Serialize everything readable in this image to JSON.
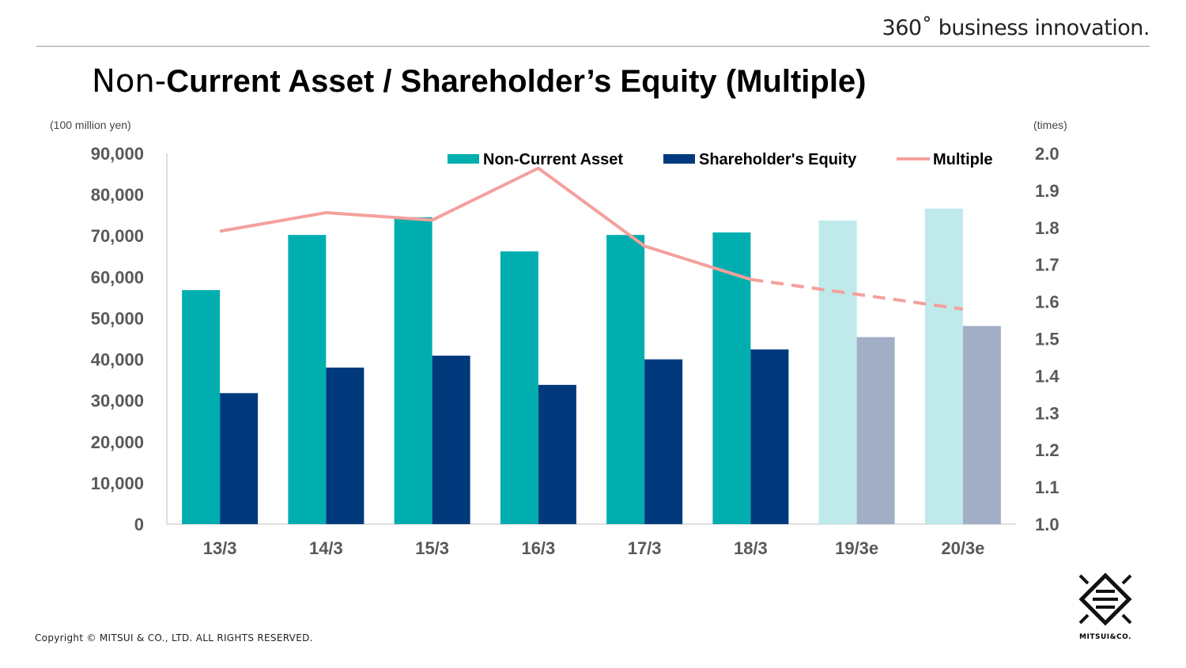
{
  "header": {
    "tagline": "360˚ business innovation.",
    "title_light": "Non-",
    "title_bold": "Current Asset / Shareholder’s Equity (Multiple)"
  },
  "footer": {
    "copyright": "Copyright © MITSUI & CO., LTD. ALL RIGHTS RESERVED.",
    "logo_text": "MITSUI&CO."
  },
  "colors": {
    "non_current_asset": "#00AEAF",
    "non_current_asset_estimate": "#BFE9EA",
    "shareholders_equity": "#003A7D",
    "shareholders_equity_estimate": "#A2AEC6",
    "multiple": "#F4A09C",
    "axis_text": "#595959"
  },
  "chart_data": {
    "type": "bar",
    "title": "",
    "categories": [
      "13/3",
      "14/3",
      "15/3",
      "16/3",
      "17/3",
      "18/3",
      "19/3e",
      "20/3e"
    ],
    "estimate_categories": [
      "19/3e",
      "20/3e"
    ],
    "series": [
      {
        "name": "Non-Current Asset",
        "type": "bar",
        "axis": "left",
        "values": [
          56800,
          70200,
          74500,
          66200,
          70200,
          70800,
          73700,
          76600
        ]
      },
      {
        "name": "Shareholder's Equity",
        "type": "bar",
        "axis": "left",
        "values": [
          31800,
          38000,
          40900,
          33800,
          40000,
          42400,
          45400,
          48100
        ]
      },
      {
        "name": "Multiple",
        "type": "line",
        "axis": "right",
        "values": [
          1.79,
          1.84,
          1.82,
          1.96,
          1.75,
          1.66,
          1.62,
          1.58
        ],
        "dashed_from_index": 5
      }
    ],
    "ylabel_left": "(100 million yen)",
    "ylabel_right": "(times)",
    "ylim_left": [
      0,
      90000
    ],
    "ylim_right": [
      1.0,
      2.0
    ],
    "yticks_left": [
      "0",
      "10,000",
      "20,000",
      "30,000",
      "40,000",
      "50,000",
      "60,000",
      "70,000",
      "80,000",
      "90,000"
    ],
    "yticks_right": [
      "1.0",
      "1.1",
      "1.2",
      "1.3",
      "1.4",
      "1.5",
      "1.6",
      "1.7",
      "1.8",
      "1.9",
      "2.0"
    ],
    "legend": [
      "Non-Current Asset",
      "Shareholder's Equity",
      "Multiple"
    ],
    "legend_position": "top-right",
    "grid": false
  }
}
